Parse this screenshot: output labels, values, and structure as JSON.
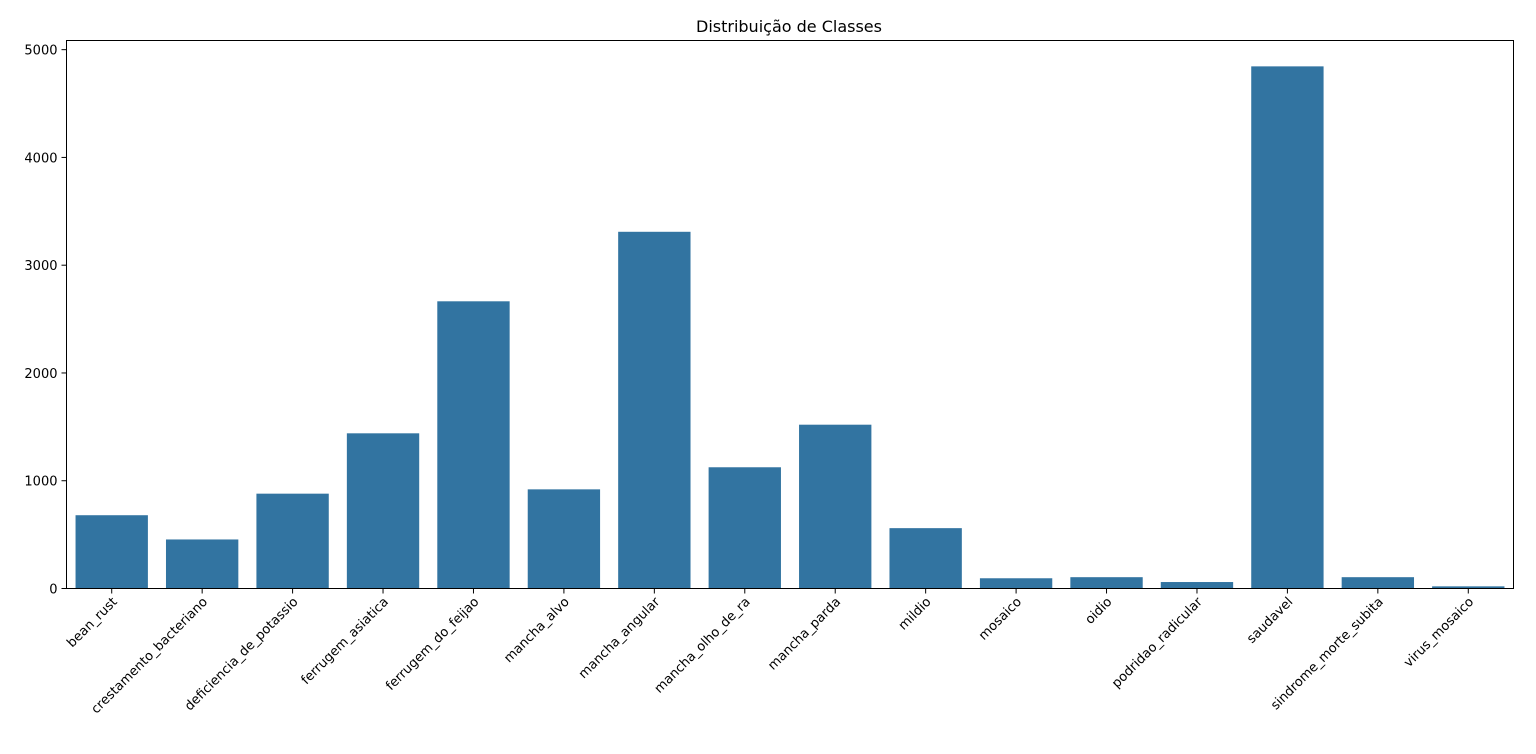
{
  "chart_data": {
    "type": "bar",
    "title": "Distribuição de Classes",
    "xlabel": "",
    "ylabel": "",
    "categories": [
      "bean_rust",
      "crestamento_bacteriano",
      "deficiencia_de_potassio",
      "ferrugem_asiatica",
      "ferrugem_do_feijao",
      "mancha_alvo",
      "mancha_angular",
      "mancha_olho_de_ra",
      "mancha_parda",
      "mildio",
      "mosaico",
      "oidio",
      "podridao_radicular",
      "saudavel",
      "sindrome_morte_subita",
      "virus_mosaico"
    ],
    "values": [
      680,
      455,
      880,
      1440,
      2665,
      920,
      3310,
      1125,
      1520,
      560,
      95,
      105,
      60,
      4845,
      105,
      20
    ],
    "ylim": [
      0,
      5085
    ],
    "yticks": [
      0,
      1000,
      2000,
      3000,
      4000,
      5000
    ],
    "bar_color": "#3274a1",
    "grid": false,
    "legend": "none"
  }
}
